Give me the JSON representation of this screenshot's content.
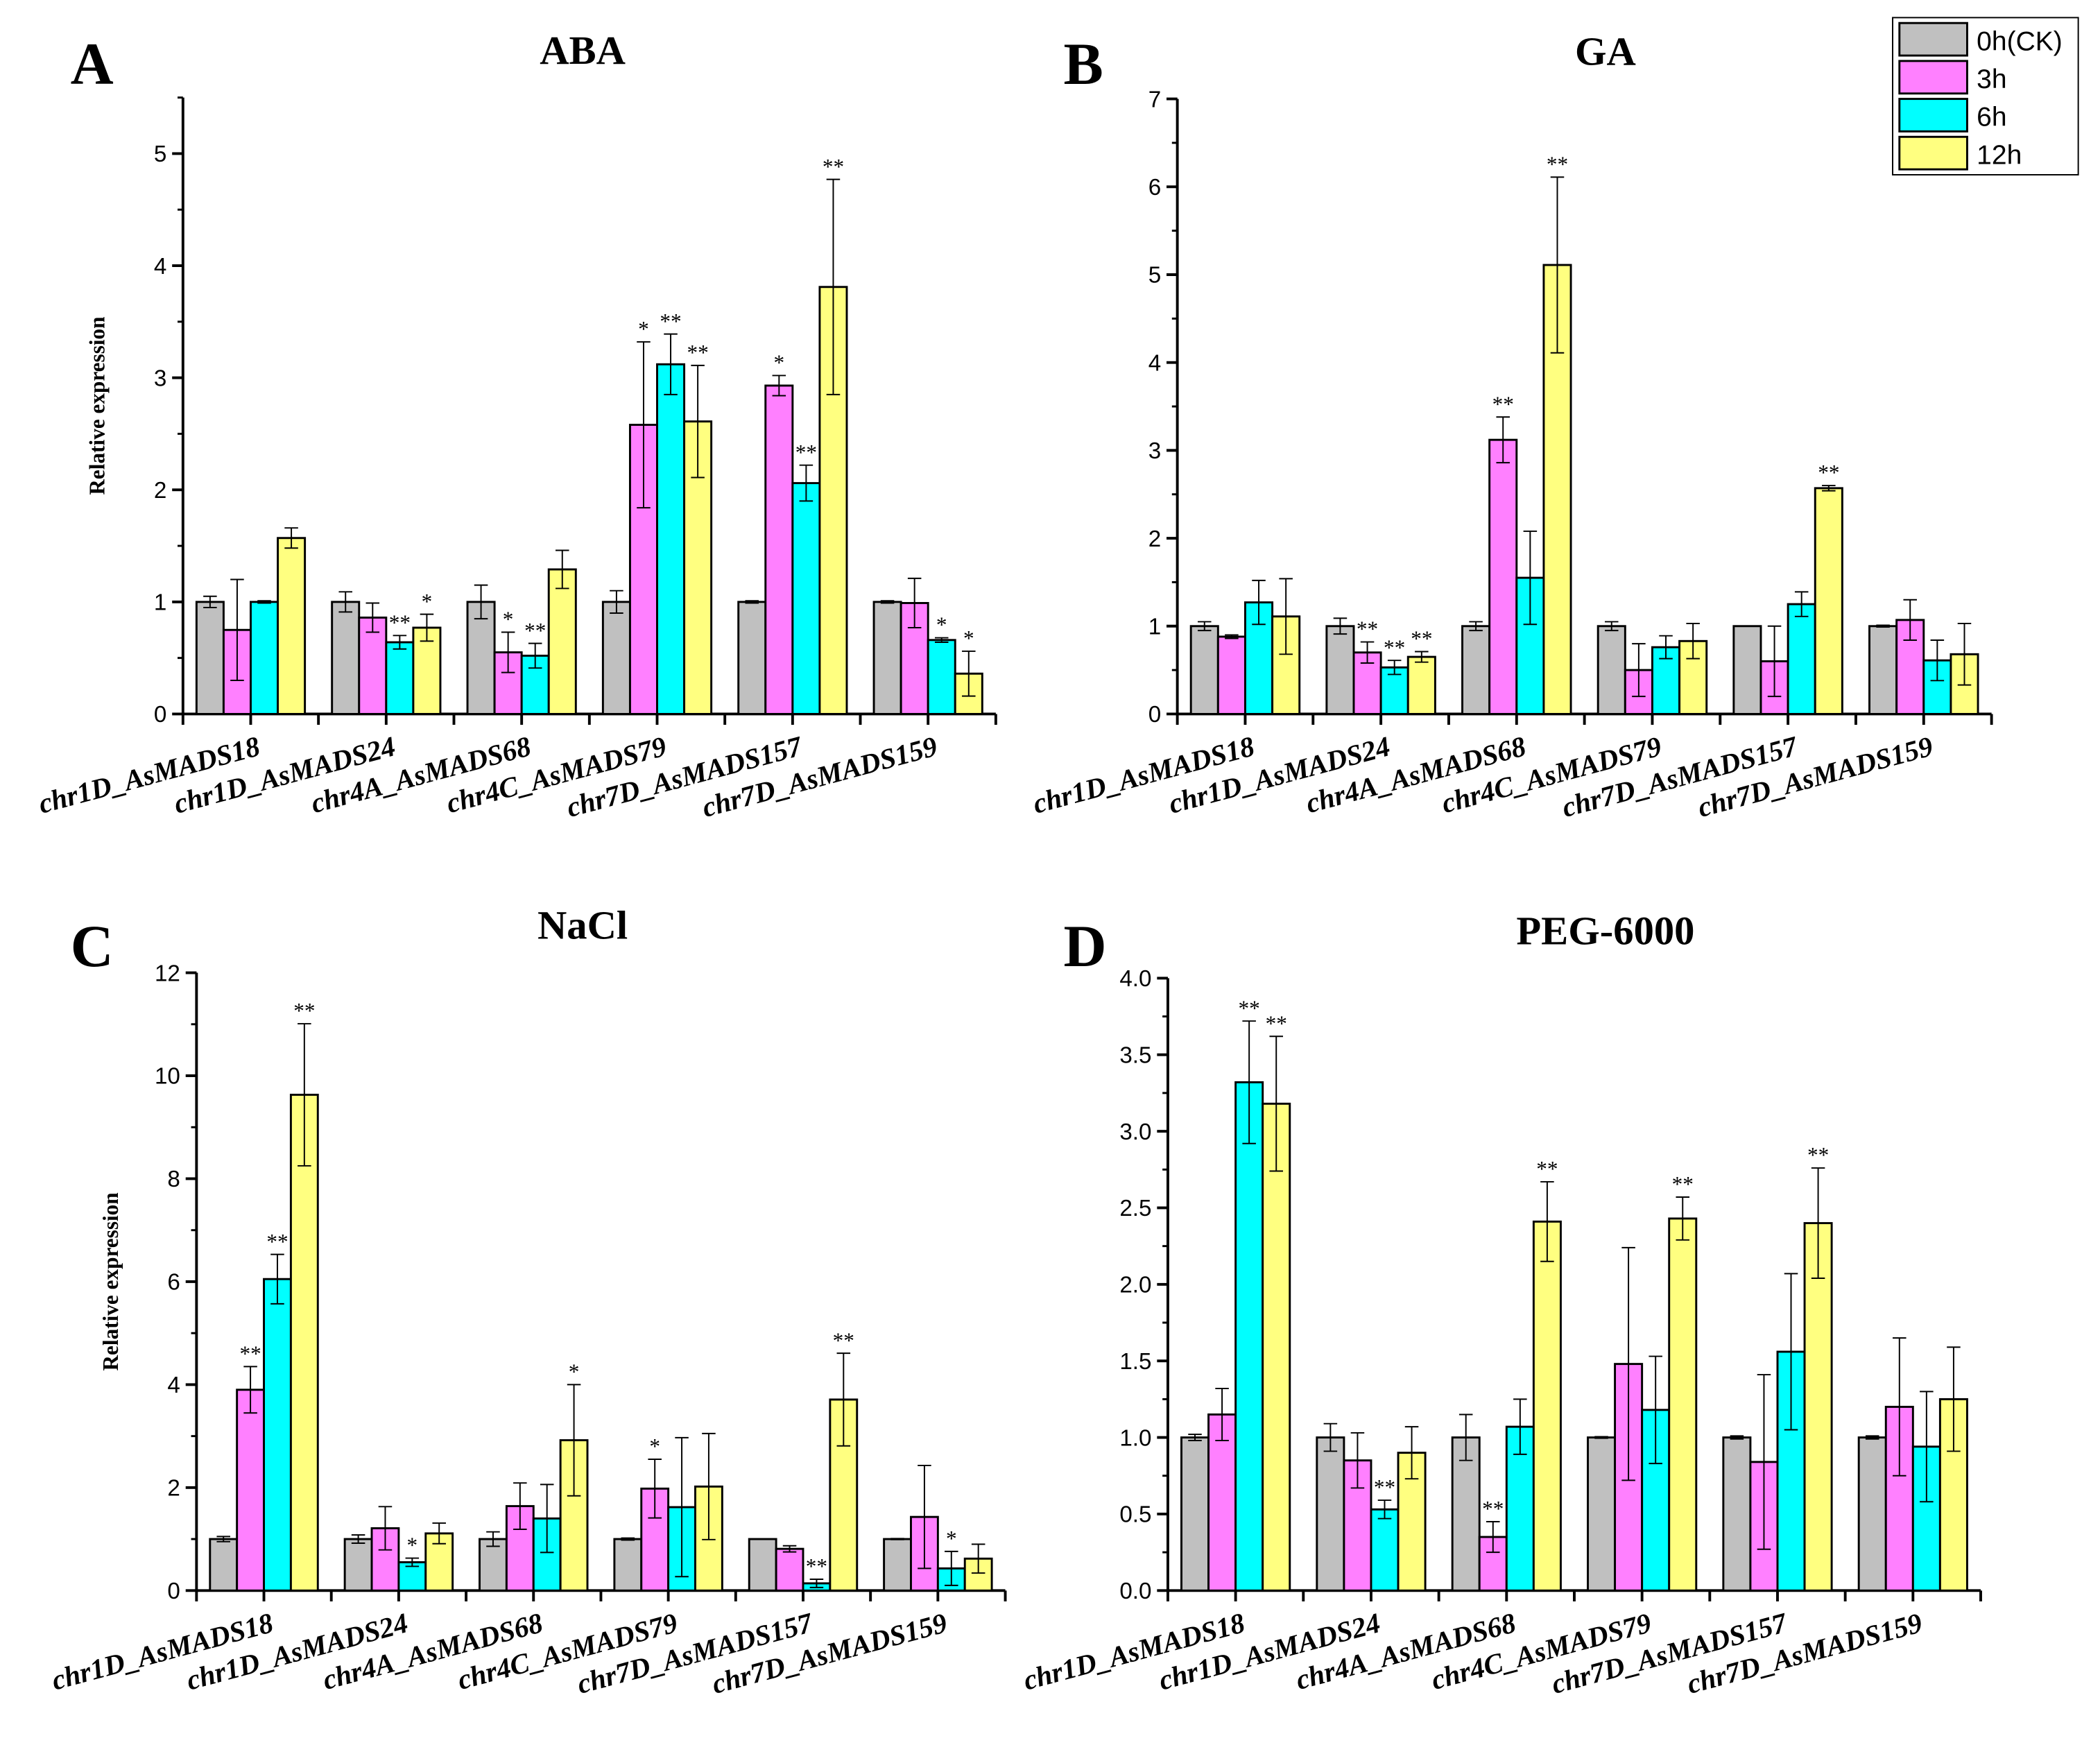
{
  "legend": {
    "entries": [
      "0h(CK)",
      "3h",
      "6h",
      "12h"
    ],
    "colors": [
      "#c0c0c0",
      "#ff80ff",
      "#00ffff",
      "#ffff80"
    ]
  },
  "y_label": "Relative expression",
  "chart_data": [
    {
      "type": "bar",
      "panel": "A",
      "title": "ABA",
      "ylabel": "Relative expression",
      "ylim": [
        0,
        5.5
      ],
      "yticks": [
        "0",
        "1",
        "2",
        "3",
        "4",
        "5"
      ],
      "ytick_values": [
        0,
        1,
        2,
        3,
        4,
        5
      ],
      "minor_step": 0.5,
      "categories": [
        "chr1D_AsMADS18",
        "chr1D_AsMADS24",
        "chr4A_AsMADS68",
        "chr4C_AsMADS79",
        "chr7D_AsMADS157",
        "chr7D_AsMADS159"
      ],
      "series": [
        {
          "name": "0h(CK)",
          "values": [
            1.0,
            1.0,
            1.0,
            1.0,
            1.0,
            1.0
          ],
          "errors": [
            0.05,
            0.09,
            0.15,
            0.1,
            0.01,
            0.01
          ],
          "sig": [
            "",
            "",
            "",
            "",
            "",
            ""
          ]
        },
        {
          "name": "3h",
          "values": [
            0.75,
            0.86,
            0.55,
            2.58,
            2.93,
            0.99
          ],
          "errors": [
            0.45,
            0.13,
            0.18,
            0.74,
            0.09,
            0.22
          ],
          "sig": [
            "",
            "",
            "*",
            "*",
            "*",
            ""
          ]
        },
        {
          "name": "6h",
          "values": [
            1.0,
            0.64,
            0.52,
            3.12,
            2.06,
            0.66
          ],
          "errors": [
            0.01,
            0.06,
            0.11,
            0.27,
            0.16,
            0.02
          ],
          "sig": [
            "",
            "**",
            "**",
            "**",
            "**",
            "*"
          ]
        },
        {
          "name": "12h",
          "values": [
            1.57,
            0.77,
            1.29,
            2.61,
            3.81,
            0.36
          ],
          "errors": [
            0.09,
            0.12,
            0.17,
            0.5,
            0.96,
            0.2
          ],
          "sig": [
            "",
            "*",
            "",
            "**",
            "**",
            "*"
          ]
        }
      ]
    },
    {
      "type": "bar",
      "panel": "B",
      "title": "GA",
      "ylabel": "",
      "ylim": [
        0,
        7
      ],
      "yticks": [
        "0",
        "1",
        "2",
        "3",
        "4",
        "5",
        "6",
        "7"
      ],
      "ytick_values": [
        0,
        1,
        2,
        3,
        4,
        5,
        6,
        7
      ],
      "minor_step": 0.5,
      "categories": [
        "chr1D_AsMADS18",
        "chr1D_AsMADS24",
        "chr4A_AsMADS68",
        "chr4C_AsMADS79",
        "chr7D_AsMADS157",
        "chr7D_AsMADS159"
      ],
      "series": [
        {
          "name": "0h(CK)",
          "values": [
            1.0,
            1.0,
            1.0,
            1.0,
            1.0,
            1.0
          ],
          "errors": [
            0.05,
            0.09,
            0.05,
            0.05,
            0.0,
            0.01
          ],
          "sig": [
            "",
            "",
            "",
            "",
            "",
            ""
          ]
        },
        {
          "name": "3h",
          "values": [
            0.88,
            0.7,
            3.12,
            0.5,
            0.6,
            1.07
          ],
          "errors": [
            0.02,
            0.12,
            0.26,
            0.3,
            0.4,
            0.23
          ],
          "sig": [
            "",
            "**",
            "**",
            "",
            "",
            ""
          ]
        },
        {
          "name": "6h",
          "values": [
            1.27,
            0.53,
            1.55,
            0.76,
            1.25,
            0.61
          ],
          "errors": [
            0.25,
            0.08,
            0.53,
            0.13,
            0.14,
            0.23
          ],
          "sig": [
            "",
            "**",
            "",
            "",
            "",
            ""
          ]
        },
        {
          "name": "12h",
          "values": [
            1.11,
            0.65,
            5.11,
            0.83,
            2.57,
            0.68
          ],
          "errors": [
            0.43,
            0.06,
            1.0,
            0.2,
            0.03,
            0.35
          ],
          "sig": [
            "",
            "**",
            "**",
            "",
            "**",
            ""
          ]
        }
      ]
    },
    {
      "type": "bar",
      "panel": "C",
      "title": "NaCl",
      "ylabel": "Relative expression",
      "ylim": [
        0,
        12
      ],
      "yticks": [
        "0",
        "2",
        "4",
        "6",
        "8",
        "10",
        "12"
      ],
      "ytick_values": [
        0,
        2,
        4,
        6,
        8,
        10,
        12
      ],
      "minor_step": 1,
      "categories": [
        "chr1D_AsMADS18",
        "chr1D_AsMADS24",
        "chr4A_AsMADS68",
        "chr4C_AsMADS79",
        "chr7D_AsMADS157",
        "chr7D_AsMADS159"
      ],
      "series": [
        {
          "name": "0h(CK)",
          "values": [
            1.0,
            1.0,
            1.0,
            1.0,
            1.0,
            1.0
          ],
          "errors": [
            0.05,
            0.08,
            0.14,
            0.02,
            0.0,
            0.01
          ],
          "sig": [
            "",
            "",
            "",
            "",
            "",
            ""
          ]
        },
        {
          "name": "3h",
          "values": [
            3.9,
            1.21,
            1.64,
            1.98,
            0.81,
            1.43
          ],
          "errors": [
            0.45,
            0.42,
            0.45,
            0.57,
            0.06,
            1.0
          ],
          "sig": [
            "**",
            "",
            "",
            "*",
            "",
            ""
          ]
        },
        {
          "name": "6h",
          "values": [
            6.05,
            0.55,
            1.4,
            1.62,
            0.14,
            0.43
          ],
          "errors": [
            0.48,
            0.08,
            0.66,
            1.35,
            0.08,
            0.33
          ],
          "sig": [
            "**",
            "*",
            "",
            "",
            "**",
            "*"
          ]
        },
        {
          "name": "12h",
          "values": [
            9.63,
            1.11,
            2.92,
            2.02,
            3.71,
            0.62
          ],
          "errors": [
            1.38,
            0.2,
            1.08,
            1.03,
            0.9,
            0.28
          ],
          "sig": [
            "**",
            "",
            "*",
            "",
            "**",
            ""
          ]
        }
      ]
    },
    {
      "type": "bar",
      "panel": "D",
      "title": "PEG-6000",
      "ylabel": "",
      "ylim": [
        0,
        4
      ],
      "yticks": [
        "0.0",
        "0.5",
        "1.0",
        "1.5",
        "2.0",
        "2.5",
        "3.0",
        "3.5",
        "4.0"
      ],
      "ytick_values": [
        0,
        0.5,
        1,
        1.5,
        2,
        2.5,
        3,
        3.5,
        4
      ],
      "minor_step": 0.25,
      "categories": [
        "chr1D_AsMADS18",
        "chr1D_AsMADS24",
        "chr4A_AsMADS68",
        "chr4C_AsMADS79",
        "chr7D_AsMADS157",
        "chr7D_AsMADS159"
      ],
      "series": [
        {
          "name": "0h(CK)",
          "values": [
            1.0,
            1.0,
            1.0,
            1.0,
            1.0,
            1.0
          ],
          "errors": [
            0.02,
            0.09,
            0.15,
            0.005,
            0.01,
            0.01
          ],
          "sig": [
            "",
            "",
            "",
            "",
            "",
            ""
          ]
        },
        {
          "name": "3h",
          "values": [
            1.15,
            0.85,
            0.35,
            1.48,
            0.84,
            1.2
          ],
          "errors": [
            0.17,
            0.18,
            0.1,
            0.76,
            0.57,
            0.45
          ],
          "sig": [
            "",
            "",
            "**",
            "",
            "",
            ""
          ]
        },
        {
          "name": "6h",
          "values": [
            3.32,
            0.53,
            1.07,
            1.18,
            1.56,
            0.94
          ],
          "errors": [
            0.4,
            0.06,
            0.18,
            0.35,
            0.51,
            0.36
          ],
          "sig": [
            "**",
            "**",
            "",
            "",
            "",
            ""
          ]
        },
        {
          "name": "12h",
          "values": [
            3.18,
            0.9,
            2.41,
            2.43,
            2.4,
            1.25
          ],
          "errors": [
            0.44,
            0.17,
            0.26,
            0.14,
            0.36,
            0.34
          ],
          "sig": [
            "**",
            "",
            "**",
            "**",
            "**",
            ""
          ]
        }
      ]
    }
  ]
}
